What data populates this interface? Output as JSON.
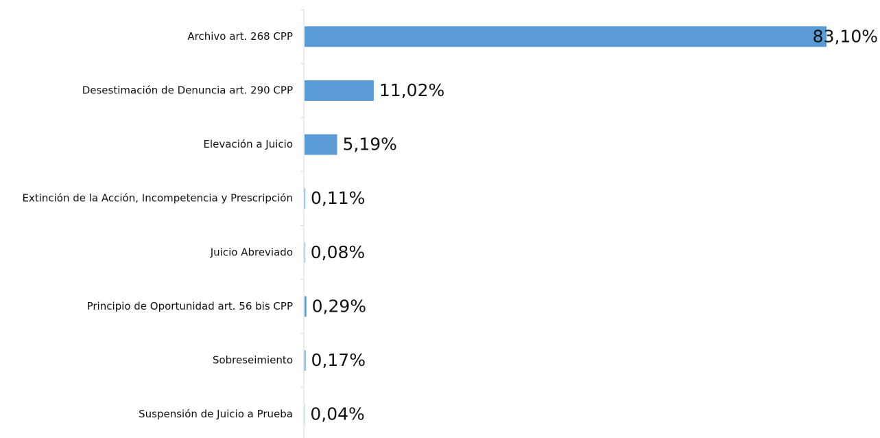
{
  "chart_data": {
    "type": "hbar",
    "categories": [
      "Archivo art. 268 CPP",
      "Desestimación de Denuncia art. 290 CPP",
      "Elevación a Juicio",
      "Extinción de la Acción, Incompetencia y Prescripción",
      "Juicio Abreviado",
      "Principio de Oportunidad art. 56 bis CPP",
      "Sobreseimiento",
      "Suspensión de Juicio a Prueba"
    ],
    "values": [
      83.1,
      11.02,
      5.19,
      0.11,
      0.08,
      0.29,
      0.17,
      0.04
    ],
    "value_labels": [
      "83,10%",
      "11,02%",
      "5,19%",
      "0,11%",
      "0,08%",
      "0,29%",
      "0,17%",
      "0,04%"
    ],
    "color": "#5b9bd5"
  }
}
